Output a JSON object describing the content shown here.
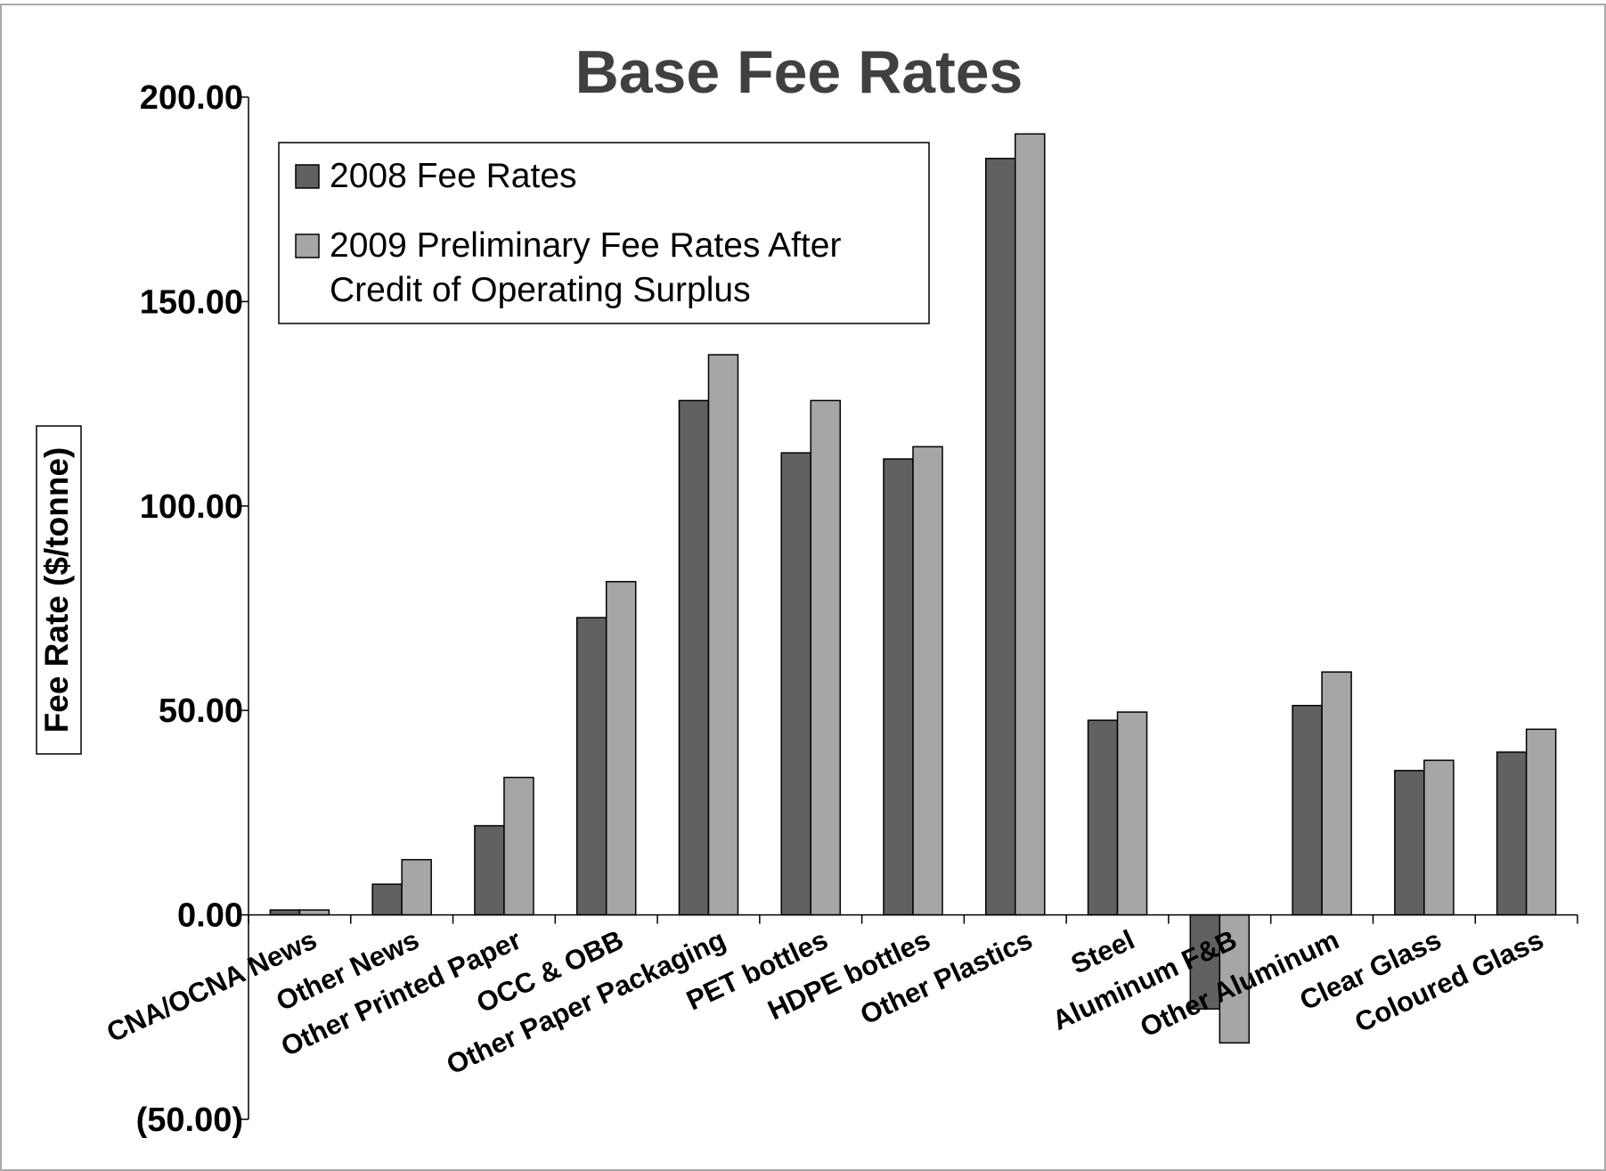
{
  "chart_data": {
    "type": "bar",
    "title": "Base Fee Rates",
    "y_label": "Fee Rate ($/tonne)",
    "categories": [
      "CNA/OCNA News",
      "Other News",
      "Other Printed Paper",
      "OCC & OBB",
      "Other Paper Packaging",
      "PET bottles",
      "HDPE bottles",
      "Other Plastics",
      "Steel",
      "Aluminum F&B",
      "Other Aluminum",
      "Clear Glass",
      "Coloured Glass"
    ],
    "series": [
      {
        "name": "2008 Fee Rates",
        "color": "#616161",
        "values": [
          1.2,
          7.5,
          21.8,
          72.7,
          125.8,
          113,
          111.5,
          185,
          47.6,
          -23,
          51.2,
          35.3,
          39.8
        ]
      },
      {
        "name": "2009 Preliminary Fee Rates After Credit of Operating Surplus",
        "color": "#a6a6a6",
        "values": [
          1.2,
          13.5,
          33.6,
          81.5,
          137,
          125.8,
          114.5,
          191,
          49.6,
          -31.3,
          59.4,
          37.8,
          45.4
        ]
      }
    ],
    "ylim": [
      -50,
      200
    ],
    "yticks": [
      {
        "value": -50,
        "label": "(50.00)"
      },
      {
        "value": 0,
        "label": "0.00"
      },
      {
        "value": 50,
        "label": "50.00"
      },
      {
        "value": 100,
        "label": "100.00"
      },
      {
        "value": 150,
        "label": "150.00"
      },
      {
        "value": 200,
        "label": "200.00"
      }
    ],
    "legend": "top-left"
  }
}
